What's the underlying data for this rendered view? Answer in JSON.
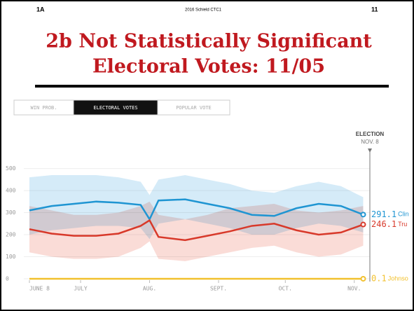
{
  "slide": {
    "corner_left": "1A",
    "corner_center": "2016 Schield CTC1",
    "corner_right": "11",
    "title_lines": [
      "2b Not Statistically Significant",
      "Electoral Votes: 11/05"
    ]
  },
  "chart_data": {
    "type": "line",
    "tabs": [
      "WIN PROB.",
      "ELECTORAL VOTES",
      "POPULAR VOTE"
    ],
    "active_tab": 1,
    "annotation": [
      "ELECTION",
      "NOV. 8"
    ],
    "annotation_x": 153,
    "x": [
      0,
      10,
      20,
      30,
      40,
      50,
      54,
      58,
      70,
      80,
      90,
      100,
      110,
      120,
      130,
      140,
      150
    ],
    "xlim": [
      0,
      153
    ],
    "xticks": [
      {
        "value": 0,
        "label": "JUNE 8"
      },
      {
        "value": 23,
        "label": "JULY"
      },
      {
        "value": 54,
        "label": "AUG."
      },
      {
        "value": 85,
        "label": "SEPT."
      },
      {
        "value": 115,
        "label": "OCT."
      },
      {
        "value": 146,
        "label": "NOV."
      }
    ],
    "ylim": [
      0,
      540
    ],
    "yticks": [
      0,
      100,
      200,
      300,
      400,
      500
    ],
    "grid": true,
    "series": [
      {
        "name": "Clin",
        "color": "#1f95d2",
        "values": [
          310,
          330,
          340,
          350,
          345,
          335,
          270,
          355,
          360,
          340,
          320,
          290,
          285,
          320,
          340,
          330,
          291.1
        ],
        "band": {
          "color": "#bfe1f5",
          "high": [
            460,
            470,
            470,
            470,
            460,
            440,
            380,
            450,
            470,
            450,
            430,
            400,
            390,
            420,
            440,
            420,
            370
          ],
          "low": [
            200,
            220,
            230,
            240,
            240,
            230,
            180,
            250,
            270,
            250,
            230,
            200,
            200,
            230,
            250,
            240,
            210
          ]
        }
      },
      {
        "name": "Tru",
        "color": "#d8392a",
        "values": [
          225,
          205,
          195,
          195,
          205,
          240,
          265,
          190,
          175,
          195,
          215,
          240,
          250,
          220,
          200,
          210,
          246.1
        ],
        "band": {
          "color": "#f8c9c2",
          "high": [
            330,
            310,
            290,
            290,
            300,
            330,
            350,
            290,
            270,
            290,
            320,
            330,
            340,
            310,
            300,
            310,
            330
          ],
          "low": [
            120,
            100,
            90,
            90,
            100,
            140,
            170,
            90,
            80,
            100,
            120,
            140,
            150,
            120,
            100,
            110,
            150
          ]
        }
      },
      {
        "name": "Johnso",
        "color": "#f2c12e",
        "values": [
          0.1,
          0.1,
          0.1,
          0.1,
          0.1,
          0.1,
          0.1,
          0.1,
          0.1,
          0.1,
          0.1,
          0.1,
          0.1,
          0.1,
          0.1,
          0.1,
          0.1
        ]
      }
    ]
  }
}
